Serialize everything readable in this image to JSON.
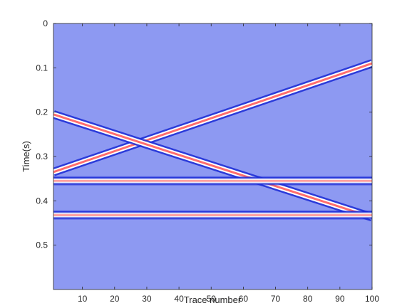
{
  "chart_data": {
    "type": "heatmap",
    "title": "",
    "xlabel": "Trace number",
    "ylabel": "Time(s)",
    "xlim": [
      1,
      100
    ],
    "ylim": [
      0,
      0.6
    ],
    "y_reversed": true,
    "xticks": [
      10,
      20,
      30,
      40,
      50,
      60,
      70,
      80,
      90,
      100
    ],
    "yticks": [
      0,
      0.1,
      0.2,
      0.3,
      0.4,
      0.5
    ],
    "ytick_labels": [
      "0",
      "0.1",
      "0.2",
      "0.3",
      "0.4",
      "0.5"
    ],
    "background_color": "#8d99f2",
    "colormap": "blue-white-red",
    "events": [
      {
        "shape": "linear",
        "trace": [
          1,
          100
        ],
        "time": [
          0.335,
          0.09
        ]
      },
      {
        "shape": "linear",
        "trace": [
          1,
          100
        ],
        "time": [
          0.205,
          0.437
        ]
      },
      {
        "shape": "flat",
        "trace": [
          1,
          100
        ],
        "time": [
          0.355,
          0.355
        ]
      },
      {
        "shape": "flat",
        "trace": [
          1,
          100
        ],
        "time": [
          0.432,
          0.432
        ]
      }
    ]
  }
}
